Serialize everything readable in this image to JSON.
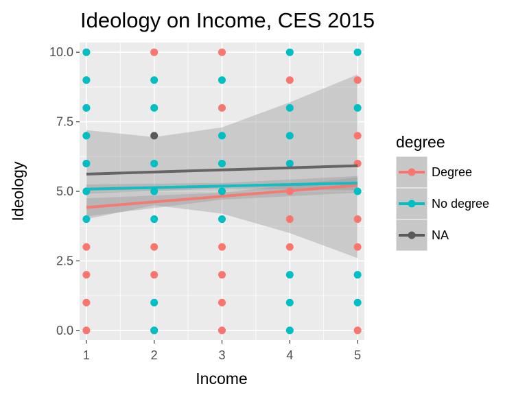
{
  "chart_data": {
    "type": "scatter",
    "title": "Ideology on Income, CES 2015",
    "xlabel": "Income",
    "ylabel": "Ideology",
    "xlim": [
      0.9,
      5.1
    ],
    "ylim": [
      -0.35,
      10.35
    ],
    "x_ticks": [
      "1",
      "2",
      "3",
      "4",
      "5"
    ],
    "y_ticks": [
      "0.0",
      "2.5",
      "5.0",
      "7.5",
      "10.0"
    ],
    "grid": true,
    "legend": {
      "title": "degree",
      "position": "right",
      "entries": [
        {
          "label": "Degree",
          "color": "#F8766D"
        },
        {
          "label": "No degree",
          "color": "#00BFC4"
        },
        {
          "label": "NA",
          "color": "#5a5a5a"
        }
      ]
    },
    "series": [
      {
        "name": "Degree",
        "color": "#F8766D",
        "points": [
          [
            1,
            10
          ],
          [
            1,
            9
          ],
          [
            1,
            8
          ],
          [
            1,
            7
          ],
          [
            1,
            6
          ],
          [
            1,
            5
          ],
          [
            1,
            3
          ],
          [
            1,
            2
          ],
          [
            1,
            1
          ],
          [
            1,
            0
          ],
          [
            2,
            10
          ],
          [
            2,
            3
          ],
          [
            2,
            2
          ],
          [
            2,
            0
          ],
          [
            3,
            10
          ],
          [
            3,
            8
          ],
          [
            3,
            5
          ],
          [
            3,
            3
          ],
          [
            3,
            2
          ],
          [
            3,
            1
          ],
          [
            3,
            0
          ],
          [
            4,
            9
          ],
          [
            4,
            5
          ],
          [
            4,
            4
          ],
          [
            4,
            3
          ],
          [
            5,
            9
          ],
          [
            5,
            7
          ],
          [
            5,
            6
          ],
          [
            5,
            4
          ],
          [
            5,
            3
          ],
          [
            5,
            0
          ]
        ],
        "fit": {
          "x": [
            1,
            5
          ],
          "y": [
            4.42,
            5.22
          ]
        }
      },
      {
        "name": "No degree",
        "color": "#00BFC4",
        "points": [
          [
            1,
            10
          ],
          [
            1,
            9
          ],
          [
            1,
            8
          ],
          [
            1,
            7
          ],
          [
            1,
            6
          ],
          [
            1,
            5
          ],
          [
            1,
            4
          ],
          [
            2,
            9
          ],
          [
            2,
            8
          ],
          [
            2,
            6
          ],
          [
            2,
            5
          ],
          [
            2,
            4
          ],
          [
            2,
            1
          ],
          [
            2,
            0
          ],
          [
            3,
            9
          ],
          [
            3,
            7
          ],
          [
            3,
            6
          ],
          [
            3,
            5
          ],
          [
            3,
            4
          ],
          [
            4,
            10
          ],
          [
            4,
            8
          ],
          [
            4,
            7
          ],
          [
            4,
            6
          ],
          [
            4,
            2
          ],
          [
            4,
            1
          ],
          [
            4,
            0
          ],
          [
            5,
            10
          ],
          [
            5,
            8
          ],
          [
            5,
            5
          ],
          [
            5,
            2
          ],
          [
            5,
            1
          ]
        ],
        "fit": {
          "x": [
            1,
            5
          ],
          "y": [
            5.08,
            5.3
          ]
        }
      },
      {
        "name": "NA",
        "color": "#5a5a5a",
        "points": [
          [
            2,
            7
          ]
        ],
        "fit": {
          "x": [
            1,
            5
          ],
          "y": [
            5.62,
            5.92
          ]
        }
      }
    ],
    "confidence_bands": {
      "color": "#999999",
      "bands": [
        {
          "series": "NA",
          "x": [
            1,
            2,
            3,
            4,
            5
          ],
          "lower": [
            4.0,
            4.5,
            4.2,
            3.5,
            2.6
          ],
          "upper": [
            7.2,
            6.95,
            7.3,
            8.2,
            9.2
          ]
        },
        {
          "series": "Degree",
          "x": [
            1,
            3,
            5
          ],
          "lower": [
            4.1,
            4.7,
            4.95
          ],
          "upper": [
            4.75,
            4.95,
            5.5
          ]
        },
        {
          "series": "No degree",
          "x": [
            1,
            3,
            5
          ],
          "lower": [
            4.92,
            5.1,
            5.05
          ],
          "upper": [
            5.25,
            5.3,
            5.55
          ]
        }
      ]
    }
  }
}
